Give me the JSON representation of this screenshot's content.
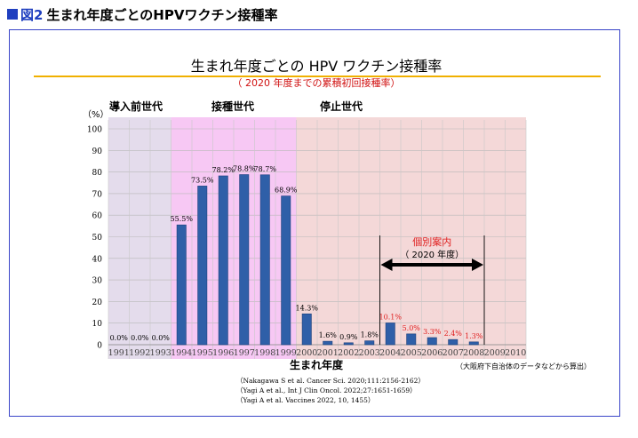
{
  "figure_label": "図2",
  "figure_title": "生まれ年度ごとのHPVワクチン接種率",
  "chart_data": {
    "type": "bar",
    "title": "生まれ年度ごとの HPV ワクチン接種率",
    "subtitle": "（ 2020 年度までの累積初回接種率）",
    "xlabel": "生まれ年度",
    "ylabel": "（%）",
    "ylim": [
      0,
      100
    ],
    "yticks": [
      0,
      10,
      20,
      30,
      40,
      50,
      60,
      70,
      80,
      90,
      100
    ],
    "categories": [
      "1991",
      "1992",
      "1993",
      "1994",
      "1995",
      "1996",
      "1997",
      "1998",
      "1999",
      "2000",
      "2001",
      "2002",
      "2003",
      "2004",
      "2005",
      "2006",
      "2007",
      "2008",
      "2009",
      "2010"
    ],
    "values": [
      0.0,
      0.0,
      0.0,
      55.5,
      73.5,
      78.2,
      78.8,
      78.7,
      68.9,
      14.3,
      1.6,
      0.9,
      1.8,
      10.1,
      5.0,
      3.3,
      2.4,
      1.3,
      null,
      null
    ],
    "value_labels": [
      "0.0%",
      "0.0%",
      "0.0%",
      "55.5%",
      "73.5%",
      "78.2%",
      "78.8%",
      "78.7%",
      "68.9%",
      "14.3%",
      "1.6%",
      "0.9%",
      "1.8%",
      "10.1%",
      "5.0%",
      "3.3%",
      "2.4%",
      "1.3%",
      "",
      ""
    ],
    "highlighted_labels_color": "#e02020",
    "regions": [
      {
        "label": "導入前世代",
        "from": "1991",
        "to": "1993",
        "color": "#e4dcec"
      },
      {
        "label": "接種世代",
        "from": "1994",
        "to": "1999",
        "color": "#f7c8f4"
      },
      {
        "label": "停止世代",
        "from": "2000",
        "to": "2010",
        "color": "#f4d8d8"
      }
    ],
    "annotation": {
      "label": "個別案内",
      "sublabel": "（ 2020 年度）",
      "from": "2004",
      "to": "2008",
      "color": "#e02020"
    },
    "bar_color": "#2f5fa8",
    "grid": true
  },
  "source_note": "（大阪府下自治体のデータなどから算出）",
  "references": [
    "（Nakagawa S et al. Cancer Sci. 2020;111:2156-2162）",
    "（Yagi A et al., Int J Clin Oncol. 2022;27:1651-1659）",
    "（Yagi A et al. Vaccines 2022, 10, 1455）"
  ]
}
